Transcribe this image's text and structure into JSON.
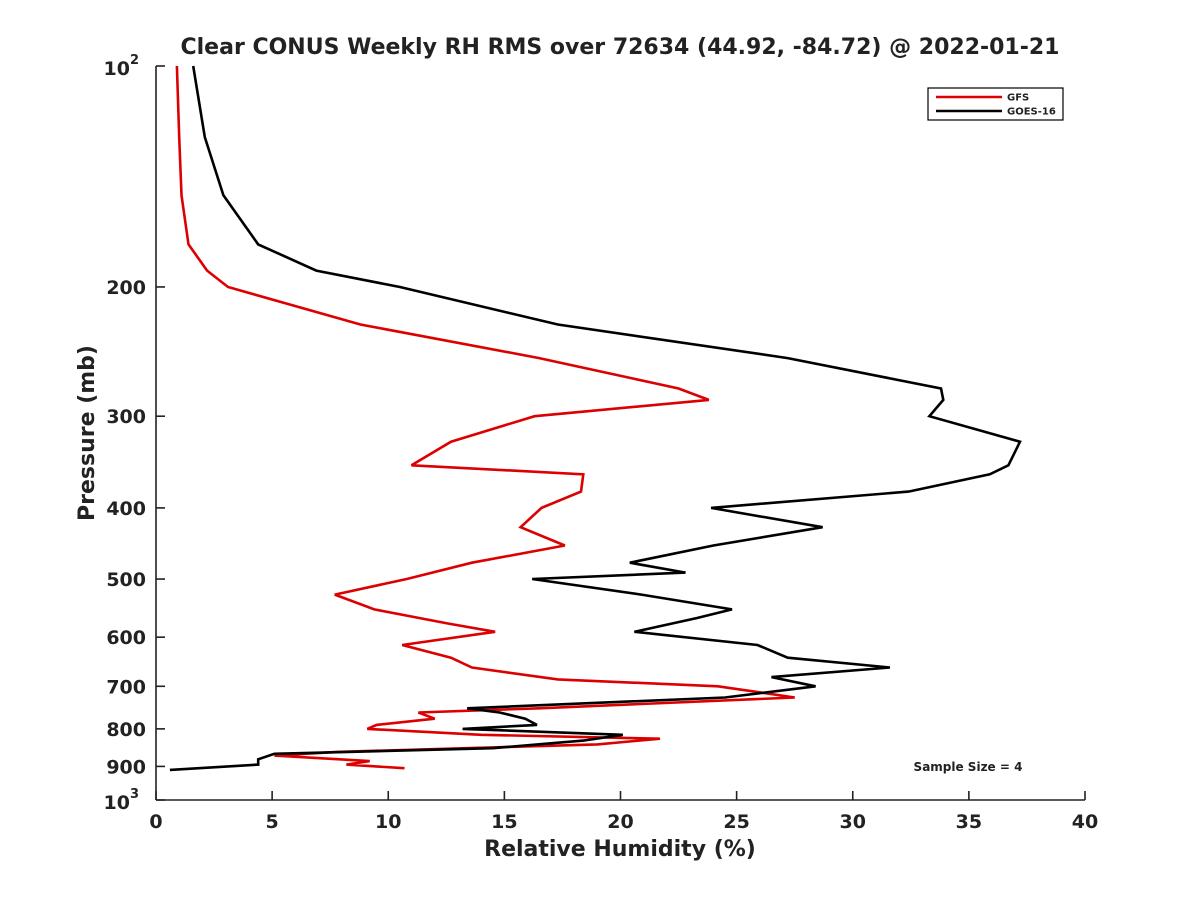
{
  "chart_data": {
    "type": "line",
    "title": "Clear CONUS Weekly RH RMS over 72634 (44.92, -84.72) @ 2022-01-21",
    "xlabel": "Relative Humidity (%)",
    "ylabel": "Pressure (mb)",
    "xlim": [
      0,
      40
    ],
    "ylim": [
      100,
      1000
    ],
    "y_scale": "log",
    "y_reversed": true,
    "x_ticks": [
      "0",
      "5",
      "10",
      "15",
      "20",
      "25",
      "30",
      "35",
      "40"
    ],
    "y_ticks": [
      {
        "value": 100,
        "base": "10",
        "exp": "2"
      },
      {
        "value": 200,
        "label": "200"
      },
      {
        "value": 300,
        "label": "300"
      },
      {
        "value": 400,
        "label": "400"
      },
      {
        "value": 500,
        "label": "500"
      },
      {
        "value": 600,
        "label": "600"
      },
      {
        "value": 700,
        "label": "700"
      },
      {
        "value": 800,
        "label": "800"
      },
      {
        "value": 900,
        "label": "900"
      },
      {
        "value": 1000,
        "base": "10",
        "exp": "3"
      }
    ],
    "legend_position": "top-right",
    "annotation": "Sample Size = 4",
    "series": [
      {
        "name": "GFS",
        "color": "#dd0000",
        "points": [
          [
            0.9,
            100
          ],
          [
            1.0,
            125
          ],
          [
            1.1,
            150
          ],
          [
            1.4,
            175
          ],
          [
            2.2,
            190
          ],
          [
            3.1,
            200
          ],
          [
            8.8,
            225
          ],
          [
            16.5,
            250
          ],
          [
            22.5,
            275
          ],
          [
            23.8,
            285
          ],
          [
            16.3,
            300
          ],
          [
            12.7,
            325
          ],
          [
            11.0,
            350
          ],
          [
            18.4,
            360
          ],
          [
            18.3,
            380
          ],
          [
            16.6,
            400
          ],
          [
            15.7,
            425
          ],
          [
            17.6,
            450
          ],
          [
            13.6,
            475
          ],
          [
            10.8,
            500
          ],
          [
            7.7,
            525
          ],
          [
            9.4,
            550
          ],
          [
            12.6,
            575
          ],
          [
            14.6,
            590
          ],
          [
            10.6,
            615
          ],
          [
            12.7,
            640
          ],
          [
            13.6,
            660
          ],
          [
            17.3,
            685
          ],
          [
            24.2,
            700
          ],
          [
            27.5,
            725
          ],
          [
            16.5,
            750
          ],
          [
            11.3,
            760
          ],
          [
            12.0,
            775
          ],
          [
            9.5,
            790
          ],
          [
            9.1,
            800
          ],
          [
            14.0,
            815
          ],
          [
            21.7,
            825
          ],
          [
            19.0,
            840
          ],
          [
            7.8,
            860
          ],
          [
            5.1,
            870
          ],
          [
            9.2,
            885
          ],
          [
            8.2,
            895
          ],
          [
            10.7,
            905
          ]
        ]
      },
      {
        "name": "GOES-16",
        "color": "#000000",
        "points": [
          [
            1.6,
            100
          ],
          [
            2.1,
            125
          ],
          [
            2.9,
            150
          ],
          [
            4.4,
            175
          ],
          [
            6.9,
            190
          ],
          [
            10.5,
            200
          ],
          [
            17.3,
            225
          ],
          [
            27.2,
            250
          ],
          [
            33.8,
            275
          ],
          [
            33.9,
            285
          ],
          [
            33.3,
            300
          ],
          [
            37.2,
            325
          ],
          [
            36.7,
            350
          ],
          [
            35.9,
            360
          ],
          [
            32.4,
            380
          ],
          [
            23.9,
            400
          ],
          [
            28.7,
            425
          ],
          [
            24.0,
            450
          ],
          [
            20.4,
            475
          ],
          [
            22.8,
            490
          ],
          [
            16.2,
            500
          ],
          [
            20.9,
            525
          ],
          [
            24.8,
            550
          ],
          [
            23.3,
            565
          ],
          [
            20.6,
            590
          ],
          [
            25.9,
            615
          ],
          [
            27.2,
            640
          ],
          [
            31.6,
            660
          ],
          [
            26.5,
            680
          ],
          [
            28.4,
            700
          ],
          [
            24.5,
            725
          ],
          [
            13.4,
            750
          ],
          [
            14.8,
            760
          ],
          [
            15.9,
            775
          ],
          [
            16.4,
            790
          ],
          [
            13.2,
            800
          ],
          [
            20.1,
            815
          ],
          [
            18.4,
            830
          ],
          [
            14.5,
            850
          ],
          [
            5.1,
            865
          ],
          [
            4.4,
            880
          ],
          [
            4.4,
            895
          ],
          [
            0.6,
            910
          ]
        ]
      }
    ]
  }
}
